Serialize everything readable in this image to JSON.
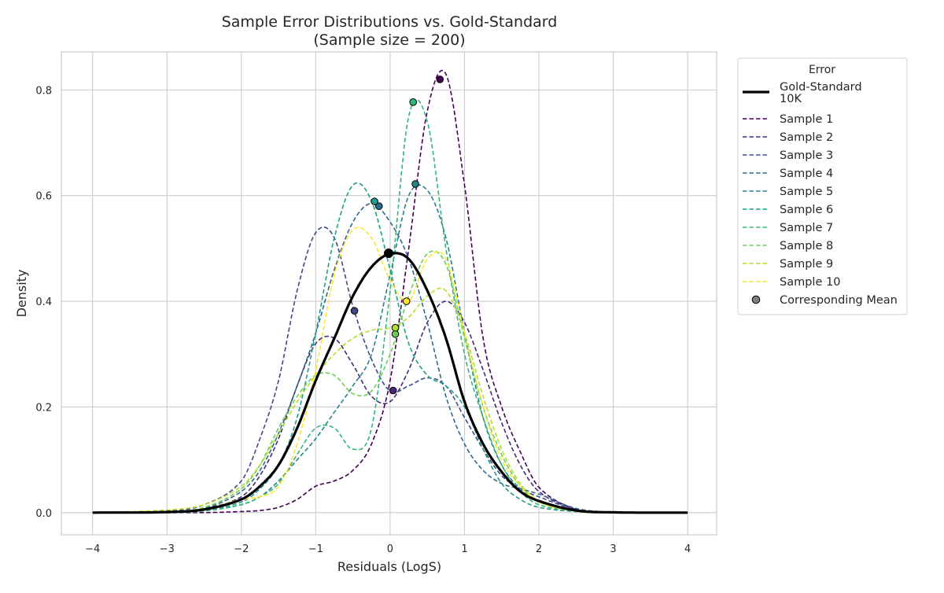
{
  "chart_data": {
    "type": "line",
    "title": "Sample Error Distributions vs. Gold-Standard",
    "subtitle": "(Sample size = 200)",
    "xlabel": "Residuals (LogS)",
    "ylabel": "Density",
    "xlim": [
      -4.42,
      4.39
    ],
    "ylim": [
      -0.042,
      0.872
    ],
    "xticks": [
      -4,
      -3,
      -2,
      -1,
      0,
      1,
      2,
      3,
      4
    ],
    "xtick_labels": [
      "−4",
      "−3",
      "−2",
      "−1",
      "0",
      "1",
      "2",
      "3",
      "4"
    ],
    "yticks": [
      0.0,
      0.2,
      0.4,
      0.6,
      0.8
    ],
    "ytick_labels": [
      "0.0",
      "0.2",
      "0.4",
      "0.6",
      "0.8"
    ],
    "grid": true,
    "legend": {
      "title": "Error",
      "placement": "outside-right-top",
      "mean_label": "Corresponding Mean",
      "mean_color": "#808080"
    },
    "x": [
      -4,
      -3,
      -2.5,
      -2,
      -1.75,
      -1.5,
      -1.25,
      -1,
      -0.75,
      -0.5,
      -0.25,
      0,
      0.25,
      0.5,
      0.75,
      1,
      1.25,
      1.5,
      1.75,
      2,
      2.5,
      3,
      4
    ],
    "series": [
      {
        "name": "Gold-Standard\n10K",
        "name_lines": [
          "Gold-Standard",
          "10K"
        ],
        "color": "#000000",
        "style": "solid",
        "mean": [
          -0.02,
          0.491
        ],
        "values": [
          0,
          0.001,
          0.006,
          0.025,
          0.05,
          0.09,
          0.16,
          0.25,
          0.33,
          0.41,
          0.465,
          0.49,
          0.48,
          0.42,
          0.33,
          0.21,
          0.13,
          0.077,
          0.04,
          0.022,
          0.004,
          0.0005,
          0
        ]
      },
      {
        "name": "Sample 1",
        "color": "#440154",
        "style": "dashed",
        "mean": [
          0.67,
          0.82
        ],
        "values": [
          0,
          0,
          0,
          0.002,
          0.004,
          0.01,
          0.025,
          0.05,
          0.06,
          0.08,
          0.13,
          0.25,
          0.5,
          0.76,
          0.83,
          0.62,
          0.33,
          0.2,
          0.115,
          0.048,
          0.006,
          0.0005,
          0
        ]
      },
      {
        "name": "Sample 2",
        "color": "#482878",
        "style": "dashed",
        "mean": [
          0.04,
          0.231
        ],
        "values": [
          0,
          0.002,
          0.008,
          0.03,
          0.07,
          0.14,
          0.24,
          0.32,
          0.33,
          0.28,
          0.22,
          0.21,
          0.27,
          0.36,
          0.4,
          0.36,
          0.27,
          0.17,
          0.09,
          0.04,
          0.006,
          0.001,
          0
        ]
      },
      {
        "name": "Sample 3",
        "color": "#3e4989",
        "style": "dashed",
        "mean": [
          -0.48,
          0.382
        ],
        "values": [
          0,
          0.003,
          0.015,
          0.06,
          0.14,
          0.25,
          0.42,
          0.53,
          0.52,
          0.39,
          0.29,
          0.23,
          0.24,
          0.255,
          0.24,
          0.18,
          0.12,
          0.07,
          0.045,
          0.03,
          0.006,
          0.001,
          0
        ]
      },
      {
        "name": "Sample 4",
        "color": "#31688e",
        "style": "dashed",
        "mean": [
          -0.15,
          0.58
        ],
        "values": [
          0,
          0.001,
          0.008,
          0.04,
          0.08,
          0.15,
          0.24,
          0.34,
          0.46,
          0.55,
          0.585,
          0.55,
          0.48,
          0.36,
          0.22,
          0.13,
          0.08,
          0.055,
          0.045,
          0.035,
          0.008,
          0.001,
          0
        ]
      },
      {
        "name": "Sample 5",
        "color": "#26828e",
        "style": "dashed",
        "mean": [
          0.34,
          0.622
        ],
        "values": [
          0,
          0,
          0.004,
          0.015,
          0.03,
          0.06,
          0.1,
          0.14,
          0.19,
          0.24,
          0.3,
          0.45,
          0.6,
          0.61,
          0.52,
          0.34,
          0.18,
          0.09,
          0.045,
          0.02,
          0.004,
          0,
          0
        ]
      },
      {
        "name": "Sample 6",
        "color": "#1f9e89",
        "style": "dashed",
        "mean": [
          -0.21,
          0.589
        ],
        "values": [
          0,
          0,
          0.004,
          0.02,
          0.045,
          0.09,
          0.18,
          0.34,
          0.52,
          0.62,
          0.59,
          0.46,
          0.32,
          0.26,
          0.24,
          0.2,
          0.12,
          0.055,
          0.025,
          0.01,
          0.002,
          0,
          0
        ]
      },
      {
        "name": "Sample 7",
        "color": "#35b779",
        "style": "dashed",
        "mean": [
          0.31,
          0.777
        ],
        "values": [
          0,
          0,
          0.003,
          0.015,
          0.03,
          0.055,
          0.11,
          0.16,
          0.16,
          0.12,
          0.16,
          0.42,
          0.75,
          0.74,
          0.5,
          0.3,
          0.18,
          0.09,
          0.04,
          0.015,
          0.003,
          0,
          0
        ]
      },
      {
        "name": "Sample 8",
        "color": "#6ece58",
        "style": "dashed",
        "mean": [
          0.07,
          0.338
        ],
        "values": [
          0,
          0.002,
          0.01,
          0.045,
          0.09,
          0.16,
          0.22,
          0.26,
          0.26,
          0.225,
          0.23,
          0.3,
          0.41,
          0.49,
          0.47,
          0.33,
          0.2,
          0.11,
          0.05,
          0.02,
          0.003,
          0,
          0
        ]
      },
      {
        "name": "Sample 9",
        "color": "#b5de2b",
        "style": "dashed",
        "mean": [
          0.07,
          0.35
        ],
        "values": [
          0,
          0.005,
          0.015,
          0.05,
          0.09,
          0.15,
          0.21,
          0.26,
          0.3,
          0.33,
          0.345,
          0.35,
          0.37,
          0.41,
          0.42,
          0.34,
          0.22,
          0.12,
          0.055,
          0.022,
          0.003,
          0,
          0
        ]
      },
      {
        "name": "Sample 10",
        "color": "#fde725",
        "style": "dashed",
        "mean": [
          0.22,
          0.4
        ],
        "values": [
          0,
          0.001,
          0.006,
          0.025,
          0.03,
          0.05,
          0.13,
          0.27,
          0.45,
          0.535,
          0.52,
          0.44,
          0.4,
          0.48,
          0.48,
          0.34,
          0.2,
          0.1,
          0.05,
          0.02,
          0.003,
          0,
          0
        ]
      }
    ]
  }
}
